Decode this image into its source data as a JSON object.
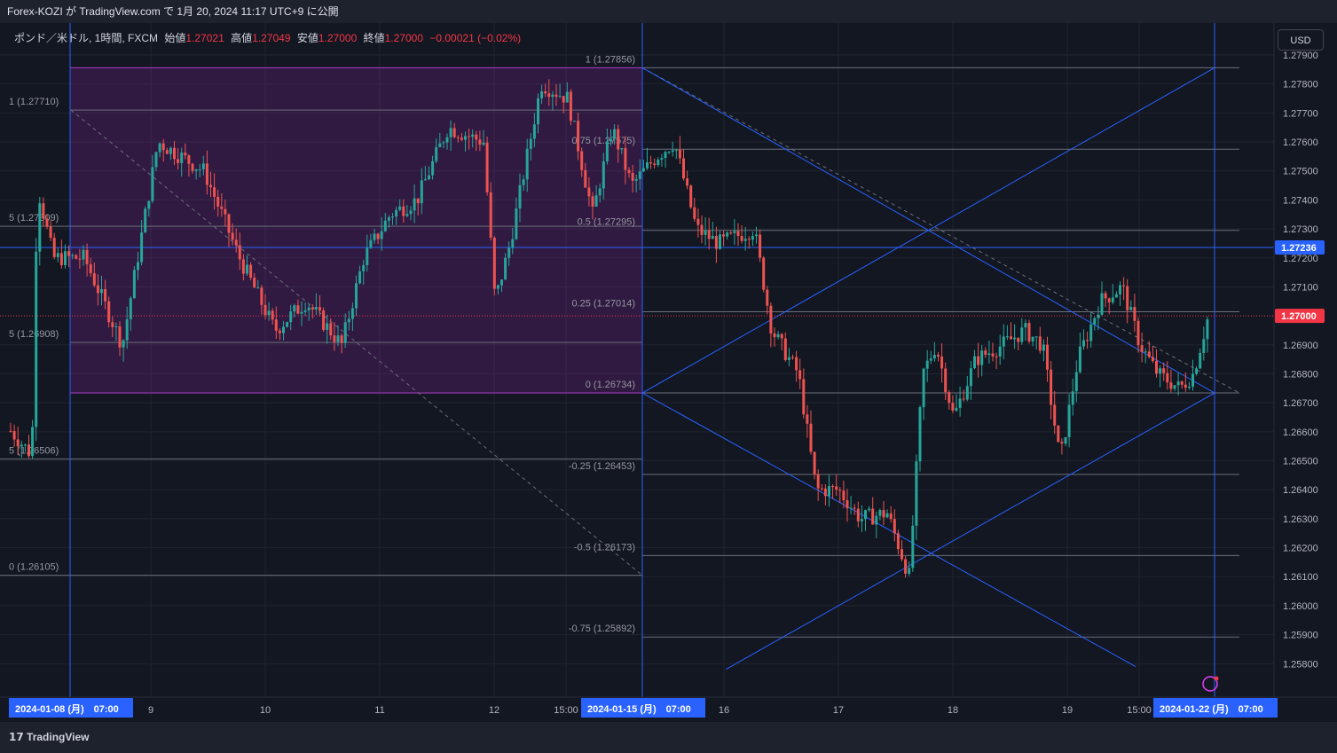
{
  "header": {
    "title": "Forex-KOZI が TradingView.com で 1月 20, 2024 11:17 UTC+9 に公開"
  },
  "legend": {
    "symbol": "ポンド／米ドル, 1時間, FXCM",
    "open_label": "始値",
    "open": "1.27021",
    "high_label": "高値",
    "high": "1.27049",
    "low_label": "安値",
    "low": "1.27000",
    "close_label": "終値",
    "close": "1.27000",
    "change": "−0.00021 (−0.02%)"
  },
  "currency_button": "USD",
  "footer": {
    "brand": "TradingView"
  },
  "colors": {
    "up": "#26a69a",
    "down": "#ef5350",
    "box": "#9c27b0",
    "line": "#2962ff",
    "bg": "#131722"
  },
  "chart_data": {
    "type": "candlestick",
    "y_ticks": [
      "1.27900",
      "1.27800",
      "1.27700",
      "1.27600",
      "1.27500",
      "1.27400",
      "1.27300",
      "1.27200",
      "1.27100",
      "1.26900",
      "1.26800",
      "1.26700",
      "1.26600",
      "1.26500",
      "1.26400",
      "1.26300",
      "1.26200",
      "1.26100",
      "1.26000",
      "1.25900",
      "1.25800"
    ],
    "price_tags": [
      {
        "value": "1.27236",
        "color": "#2962ff"
      },
      {
        "value": "1.27000",
        "color": "#f23645"
      }
    ],
    "x_labels": [
      "9",
      "10",
      "11",
      "12",
      "15:00",
      "16",
      "17",
      "18",
      "19",
      "15:00"
    ],
    "x_tags": [
      "2024-01-08 (月)　07:00",
      "2024-01-15 (月)　07:00",
      "2024-01-22 (月)　07:00"
    ],
    "fib_left": [
      "1 (1.27710)",
      "5 (1.27309)",
      "5 (1.26908)",
      "5 (1.26506)",
      "0 (1.26105)"
    ],
    "fib_right": [
      "1 (1.27856)",
      "0.75 (1.27575)",
      "0.5 (1.27295)",
      "0.25 (1.27014)",
      "0 (1.26734)",
      "-0.25 (1.26453)",
      "-0.5 (1.26173)",
      "-0.75 (1.25892)"
    ]
  }
}
